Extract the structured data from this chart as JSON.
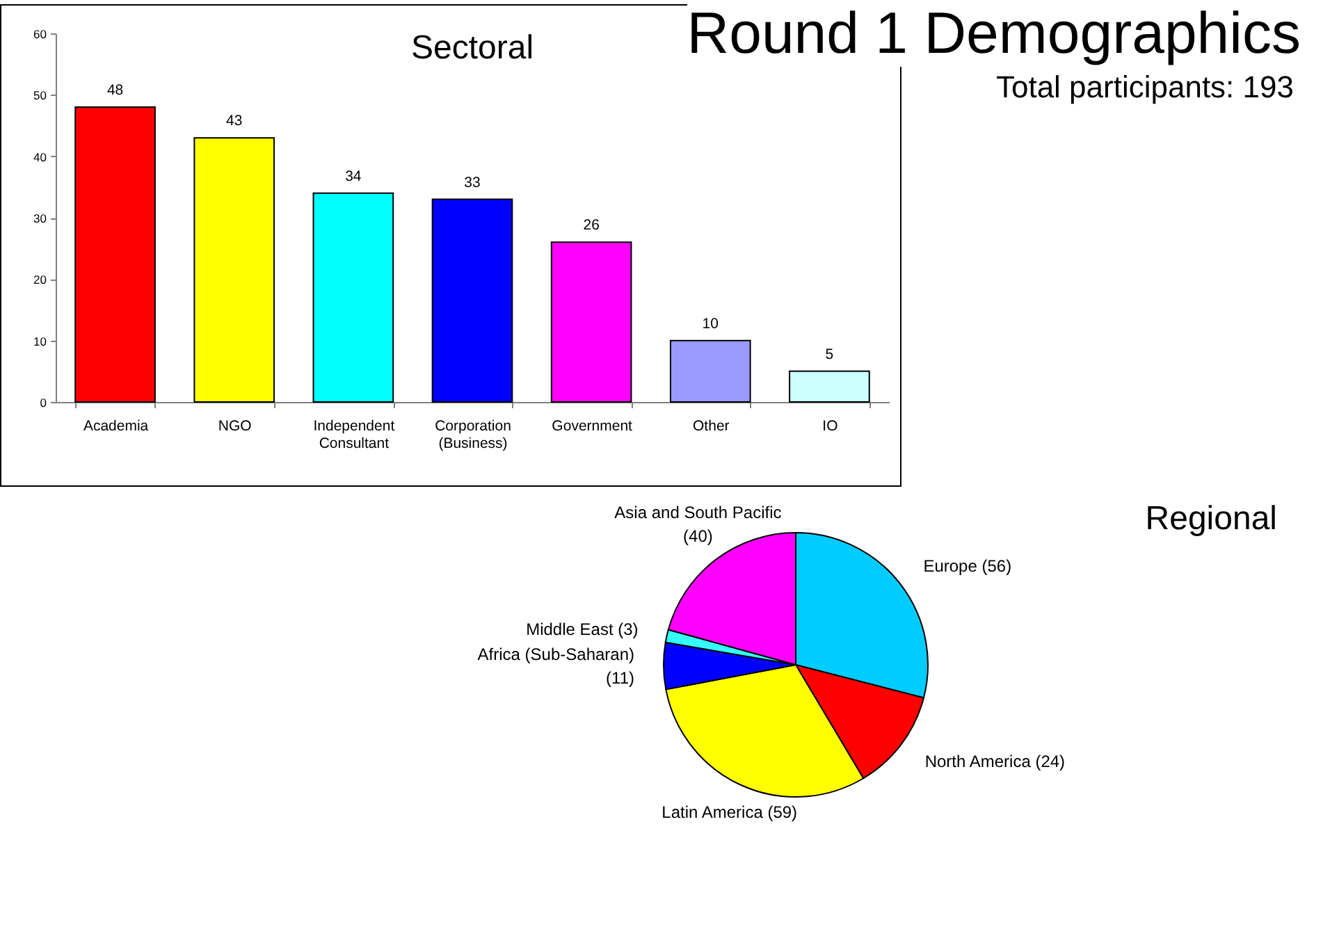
{
  "chart_data": [
    {
      "type": "bar",
      "title": "Sectoral",
      "categories": [
        "Academia",
        "NGO",
        "Independent Consultant",
        "Corporation (Business)",
        "Government",
        "Other",
        "IO"
      ],
      "values": [
        48,
        43,
        34,
        33,
        26,
        10,
        5
      ],
      "colors": [
        "#ff0000",
        "#ffff00",
        "#00ffff",
        "#0000ff",
        "#ff00ff",
        "#9999ff",
        "#ccffff"
      ],
      "ylim": [
        0,
        60
      ],
      "yticks": [
        0,
        10,
        20,
        30,
        40,
        50,
        60
      ],
      "data_labels": true,
      "annotations": [
        "Round 1 Demographics",
        "Total participants: 193"
      ]
    },
    {
      "type": "pie",
      "title": "Regional",
      "categories": [
        "Europe",
        "North America",
        "Latin America",
        "Africa (Sub-Saharan)",
        "Middle East",
        "Asia and South Pacific"
      ],
      "values": [
        56,
        24,
        59,
        11,
        3,
        40
      ],
      "colors": [
        "#00ccff",
        "#ff0000",
        "#ffff00",
        "#0000ff",
        "#33ffff",
        "#ff00ff"
      ],
      "value_labels": [
        "(56)",
        "(24)",
        "(59)",
        "(11)",
        "(3)",
        "(40)"
      ]
    }
  ]
}
